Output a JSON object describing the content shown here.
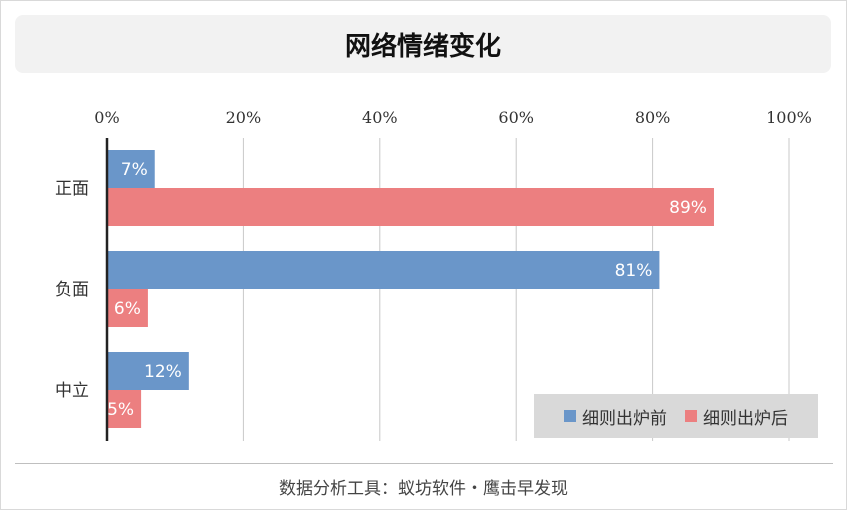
{
  "chart_data": {
    "type": "bar",
    "orientation": "horizontal",
    "title": "网络情绪变化",
    "categories": [
      "正面",
      "负面",
      "中立"
    ],
    "series": [
      {
        "name": "细则出炉前",
        "values": [
          7,
          81,
          12
        ],
        "color": "#6a96c9"
      },
      {
        "name": "细则出炉后",
        "values": [
          89,
          6,
          5
        ],
        "color": "#ec7f80"
      }
    ],
    "value_suffix": "%",
    "xlim": [
      0,
      100
    ],
    "xticks": [
      0,
      20,
      40,
      60,
      80,
      100
    ],
    "tick_labels": [
      "0%",
      "20%",
      "40%",
      "60%",
      "80%",
      "100%"
    ],
    "xlabel": "",
    "ylabel": "",
    "grid": true,
    "legend_position": "bottom-right"
  },
  "footer": {
    "text": "数据分析工具：蚁坊软件・鹰击早发现"
  }
}
